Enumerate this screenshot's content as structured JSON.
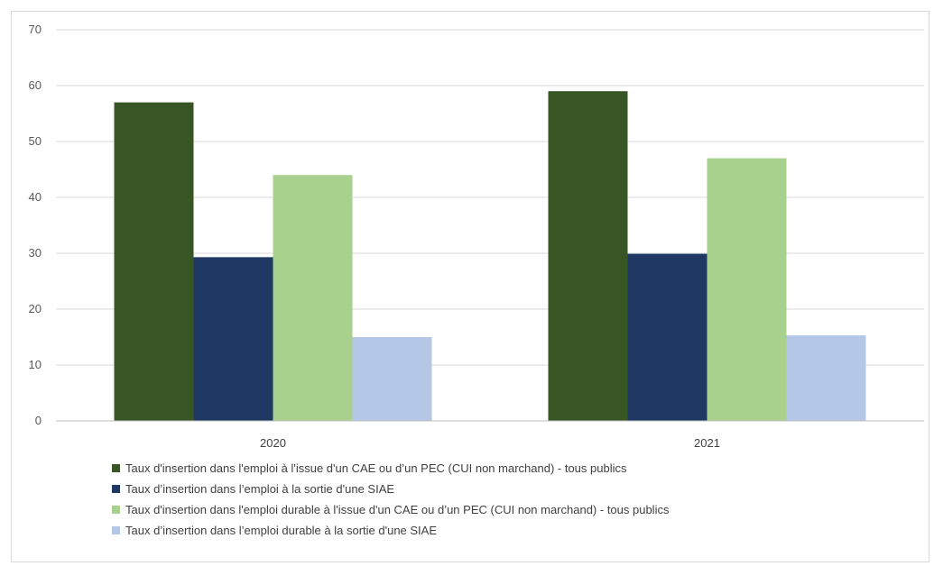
{
  "colors": [
    "#375623",
    "#203864",
    "#a9d18e",
    "#b4c7e7"
  ],
  "chart_data": {
    "type": "bar",
    "categories": [
      "2020",
      "2021"
    ],
    "series": [
      {
        "name": "Taux d'insertion dans l'emploi à l'issue d'un CAE ou d’un PEC (CUI non marchand) - tous publics",
        "values": [
          57,
          59
        ]
      },
      {
        "name": "Taux d’insertion dans l’emploi à la sortie d'une SIAE",
        "values": [
          29.3,
          29.9
        ]
      },
      {
        "name": "Taux d'insertion dans l'emploi durable à l'issue d'un CAE ou d’un PEC (CUI non marchand) - tous publics",
        "values": [
          44,
          47
        ]
      },
      {
        "name": "Taux d’insertion dans l’emploi durable à la sortie d'une SIAE",
        "values": [
          15,
          15.3
        ]
      }
    ],
    "ylim": [
      0,
      70
    ],
    "yticks": [
      0,
      10,
      20,
      30,
      40,
      50,
      60,
      70
    ],
    "grid": true,
    "legend": "bottom"
  }
}
